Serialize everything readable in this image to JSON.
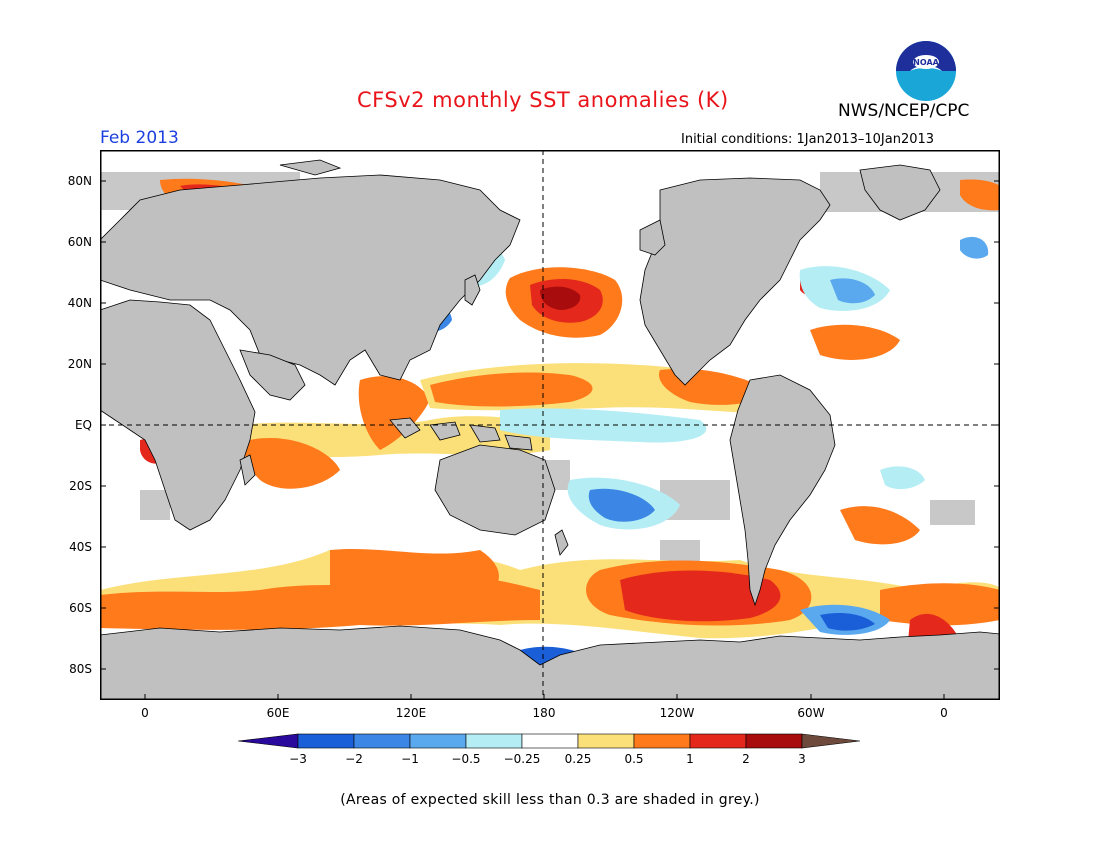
{
  "title": "CFSv2 monthly SST anomalies (K)",
  "valid_month": "Feb 2013",
  "agency": "NWS/NCEP/CPC",
  "logo_text": "NOAA",
  "initial_conditions": "Initial conditions: 1Jan2013–10Jan2013",
  "footnote": "(Areas of expected skill less than 0.3 are shaded in grey.)",
  "map": {
    "lat_labels": [
      "80N",
      "60N",
      "40N",
      "20N",
      "EQ",
      "20S",
      "40S",
      "60S",
      "80S"
    ],
    "lon_labels": [
      "0",
      "60E",
      "120E",
      "180",
      "120W",
      "60W",
      "0"
    ],
    "colors": {
      "land": "#c0c0c0",
      "low_skill": "#c8c8c8",
      "coast": "#000000"
    }
  },
  "colorbar": {
    "tick_labels": [
      "−3",
      "−2",
      "−1",
      "−0.5",
      "−0.25",
      "0.25",
      "0.5",
      "1",
      "2",
      "3"
    ],
    "colors": [
      "#2a0a9c",
      "#1a5fd8",
      "#3c87e6",
      "#5aa8ee",
      "#b4eef4",
      "#ffffff",
      "#fbe07a",
      "#ff7a1a",
      "#e4281c",
      "#a80c0c",
      "#6e4a3c"
    ]
  },
  "anomaly_features": [
    {
      "label": "North Pacific warm blob",
      "level": 1
    },
    {
      "label": "Southeast Pacific warm band",
      "level": 1
    },
    {
      "label": "Southern Ocean Atlantic/Indian warm band",
      "level": 1
    },
    {
      "label": "Subtropical South Pacific cool patch",
      "level": -0.5
    },
    {
      "label": "North Atlantic subpolar cool patch",
      "level": -0.5
    },
    {
      "label": "Weddell/Drake cool patch",
      "level": -1
    }
  ]
}
